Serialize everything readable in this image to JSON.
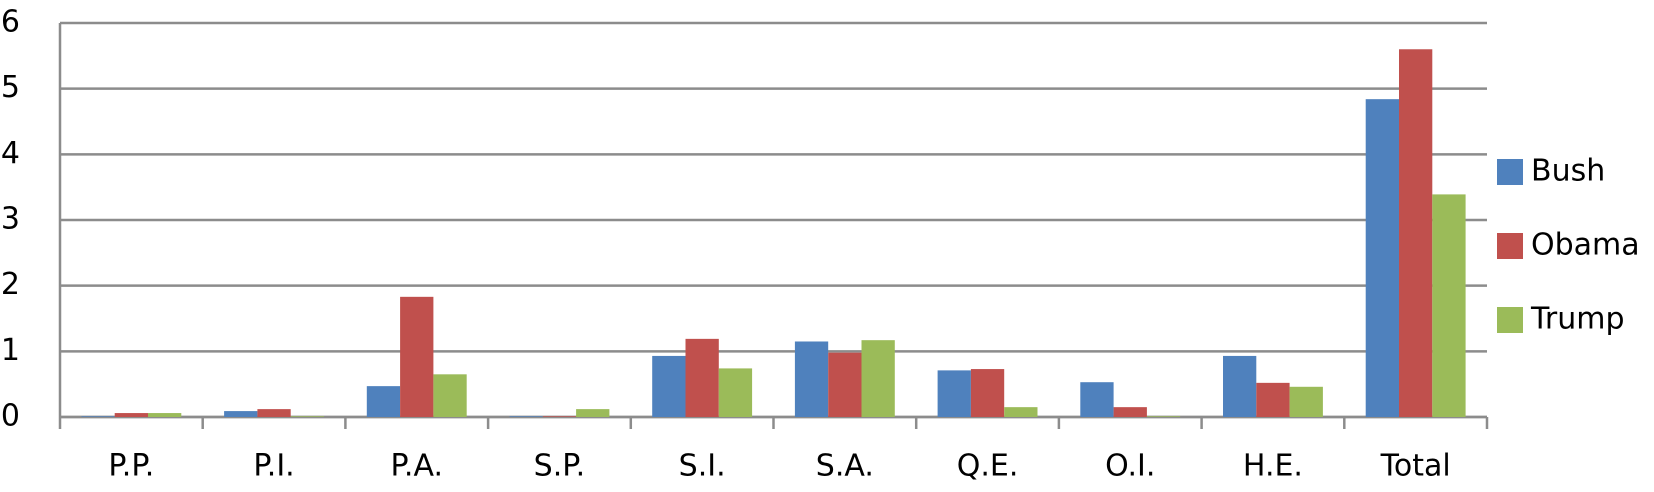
{
  "chart_data": {
    "type": "bar",
    "categories": [
      "P.P.",
      "P.I.",
      "P.A.",
      "S.P.",
      "S.I.",
      "S.A.",
      "Q.E.",
      "O.I.",
      "H.E.",
      "Total"
    ],
    "series": [
      {
        "name": "Bush",
        "color": "#4f81bd",
        "values": [
          0.01,
          0.09,
          0.47,
          0.01,
          0.93,
          1.15,
          0.71,
          0.53,
          0.93,
          4.84
        ]
      },
      {
        "name": "Obama",
        "color": "#c0504d",
        "values": [
          0.06,
          0.12,
          1.83,
          0.01,
          1.19,
          0.98,
          0.73,
          0.15,
          0.52,
          5.6
        ]
      },
      {
        "name": "Trump",
        "color": "#9bbb59",
        "values": [
          0.06,
          0.01,
          0.65,
          0.12,
          0.74,
          1.17,
          0.15,
          0.01,
          0.46,
          3.39
        ]
      }
    ],
    "ylim": [
      0,
      6
    ],
    "yticks": [
      0,
      1,
      2,
      3,
      4,
      5,
      6
    ],
    "grid": true,
    "legend": "right"
  }
}
